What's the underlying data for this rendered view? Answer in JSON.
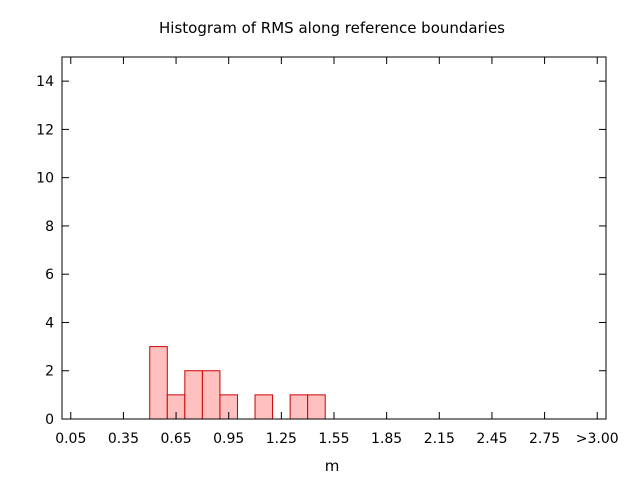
{
  "chart_data": {
    "type": "bar",
    "title": "Histogram of RMS along reference boundaries",
    "xlabel": "m",
    "ylabel": "",
    "x_tick_labels": [
      "0.05",
      "0.35",
      "0.65",
      "0.95",
      "1.25",
      "1.55",
      "1.85",
      "2.15",
      "2.45",
      "2.75",
      ">3.00"
    ],
    "x_tick_values": [
      0.05,
      0.35,
      0.65,
      0.95,
      1.25,
      1.55,
      1.85,
      2.15,
      2.45,
      2.75,
      3.05
    ],
    "y_tick_labels": [
      "0",
      "2",
      "4",
      "6",
      "8",
      "10",
      "12",
      "14"
    ],
    "y_tick_values": [
      0,
      2,
      4,
      6,
      8,
      10,
      12,
      14
    ],
    "xlim": [
      0.0,
      3.1
    ],
    "ylim": [
      0,
      15
    ],
    "bin_width": 0.1,
    "bins": [
      {
        "start": 0.5,
        "count": 3
      },
      {
        "start": 0.6,
        "count": 1
      },
      {
        "start": 0.7,
        "count": 2
      },
      {
        "start": 0.8,
        "count": 2
      },
      {
        "start": 0.9,
        "count": 1
      },
      {
        "start": 1.1,
        "count": 1
      },
      {
        "start": 1.3,
        "count": 1
      },
      {
        "start": 1.4,
        "count": 1
      }
    ],
    "grid": false,
    "bar_fill": "#ffc0c0",
    "bar_stroke": "#cc0000"
  }
}
